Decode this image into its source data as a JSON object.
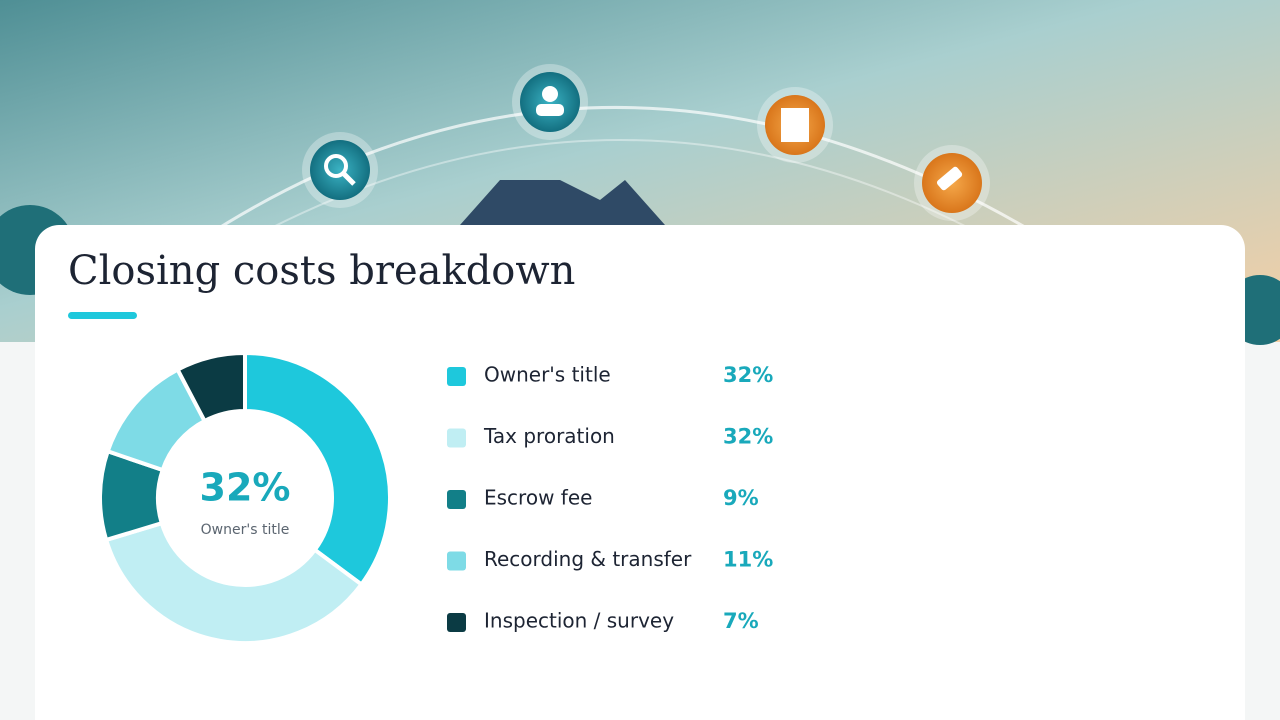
{
  "chart_data": {
    "type": "pie",
    "title": "Closing costs breakdown",
    "categories": [
      "Owner's title",
      "Tax proration",
      "Escrow fee",
      "Recording & transfer",
      "Inspection / survey"
    ],
    "values": [
      32,
      32,
      9,
      11,
      7
    ],
    "value_labels": [
      "32%",
      "32%",
      "9%",
      "11%",
      "7%"
    ],
    "colors": [
      "#1ec8dc",
      "#c0eef3",
      "#127f88",
      "#7edbe6",
      "#0b3b44"
    ]
  }
}
